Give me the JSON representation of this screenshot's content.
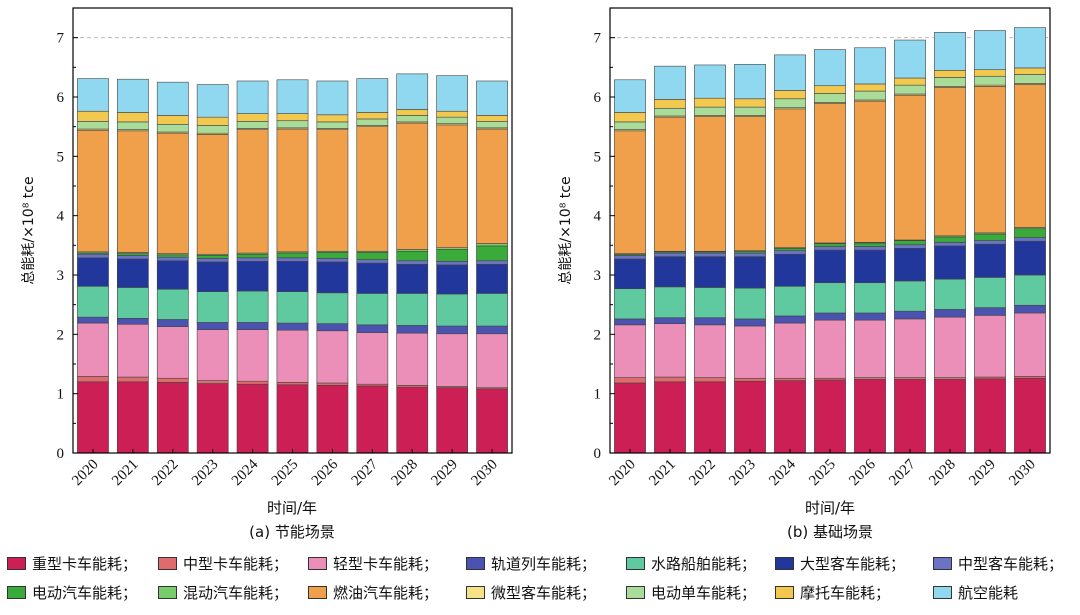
{
  "chart_data": [
    {
      "type": "bar",
      "stacked": true,
      "caption": "(a) 节能场景",
      "xlabel": "时间/年",
      "ylabel": "总能耗/×10⁸ tce",
      "ylim": [
        0,
        7.5
      ],
      "yticks": [
        0,
        1,
        2,
        3,
        4,
        5,
        6,
        7
      ],
      "gridline_at": 7,
      "categories": [
        "2020",
        "2021",
        "2022",
        "2023",
        "2024",
        "2025",
        "2026",
        "2027",
        "2028",
        "2029",
        "2030"
      ],
      "series": [
        {
          "name": "重型卡车能耗",
          "values": [
            1.2,
            1.2,
            1.19,
            1.17,
            1.16,
            1.15,
            1.14,
            1.13,
            1.11,
            1.1,
            1.08
          ]
        },
        {
          "name": "中型卡车能耗",
          "values": [
            0.09,
            0.08,
            0.07,
            0.05,
            0.05,
            0.04,
            0.04,
            0.03,
            0.03,
            0.02,
            0.02
          ]
        },
        {
          "name": "轻型卡车能耗",
          "values": [
            0.9,
            0.89,
            0.87,
            0.86,
            0.87,
            0.88,
            0.88,
            0.87,
            0.88,
            0.89,
            0.91
          ]
        },
        {
          "name": "轨道列车能耗",
          "values": [
            0.1,
            0.1,
            0.12,
            0.12,
            0.12,
            0.12,
            0.12,
            0.13,
            0.13,
            0.13,
            0.13
          ]
        },
        {
          "name": "水路船舶能耗",
          "values": [
            0.52,
            0.52,
            0.51,
            0.52,
            0.53,
            0.53,
            0.52,
            0.53,
            0.54,
            0.54,
            0.55
          ]
        },
        {
          "name": "大型客车能耗",
          "values": [
            0.48,
            0.48,
            0.48,
            0.5,
            0.5,
            0.51,
            0.52,
            0.51,
            0.49,
            0.49,
            0.49
          ]
        },
        {
          "name": "中型客车能耗",
          "values": [
            0.06,
            0.06,
            0.06,
            0.06,
            0.06,
            0.06,
            0.06,
            0.06,
            0.06,
            0.06,
            0.06
          ]
        },
        {
          "name": "电动汽车能耗",
          "values": [
            0.02,
            0.03,
            0.04,
            0.05,
            0.06,
            0.08,
            0.1,
            0.12,
            0.16,
            0.2,
            0.25
          ]
        },
        {
          "name": "混动汽车能耗",
          "values": [
            0.02,
            0.02,
            0.02,
            0.02,
            0.02,
            0.02,
            0.02,
            0.02,
            0.03,
            0.03,
            0.04
          ]
        },
        {
          "name": "燃油汽车能耗",
          "values": [
            2.05,
            2.05,
            2.03,
            2.02,
            2.08,
            2.07,
            2.05,
            2.1,
            2.13,
            2.07,
            1.93
          ]
        },
        {
          "name": "微型客车能耗",
          "values": [
            0.02,
            0.02,
            0.02,
            0.02,
            0.02,
            0.02,
            0.02,
            0.02,
            0.02,
            0.02,
            0.02
          ]
        },
        {
          "name": "电动单车能耗",
          "values": [
            0.13,
            0.13,
            0.13,
            0.13,
            0.12,
            0.12,
            0.11,
            0.11,
            0.11,
            0.11,
            0.11
          ]
        },
        {
          "name": "摩托车能耗",
          "values": [
            0.17,
            0.16,
            0.15,
            0.14,
            0.13,
            0.12,
            0.12,
            0.11,
            0.1,
            0.1,
            0.1
          ]
        },
        {
          "name": "航空能耗",
          "values": [
            0.55,
            0.56,
            0.56,
            0.55,
            0.55,
            0.57,
            0.57,
            0.57,
            0.6,
            0.6,
            0.58
          ]
        }
      ]
    },
    {
      "type": "bar",
      "stacked": true,
      "caption": "(b) 基础场景",
      "xlabel": "时间/年",
      "ylabel": "总能耗/×10⁸ tce",
      "ylim": [
        0,
        7.5
      ],
      "yticks": [
        0,
        1,
        2,
        3,
        4,
        5,
        6,
        7
      ],
      "gridline_at": 7,
      "categories": [
        "2020",
        "2021",
        "2022",
        "2023",
        "2024",
        "2025",
        "2026",
        "2027",
        "2028",
        "2029",
        "2030"
      ],
      "series": [
        {
          "name": "重型卡车能耗",
          "values": [
            1.18,
            1.2,
            1.2,
            1.21,
            1.22,
            1.23,
            1.24,
            1.24,
            1.24,
            1.25,
            1.26
          ]
        },
        {
          "name": "中型卡车能耗",
          "values": [
            0.09,
            0.08,
            0.07,
            0.05,
            0.04,
            0.03,
            0.03,
            0.03,
            0.03,
            0.03,
            0.03
          ]
        },
        {
          "name": "轻型卡车能耗",
          "values": [
            0.89,
            0.9,
            0.89,
            0.88,
            0.93,
            0.98,
            0.97,
            0.99,
            1.02,
            1.04,
            1.07
          ]
        },
        {
          "name": "轨道列车能耗",
          "values": [
            0.1,
            0.1,
            0.12,
            0.12,
            0.12,
            0.12,
            0.12,
            0.13,
            0.13,
            0.13,
            0.13
          ]
        },
        {
          "name": "水路船舶能耗",
          "values": [
            0.51,
            0.52,
            0.51,
            0.52,
            0.5,
            0.51,
            0.51,
            0.51,
            0.51,
            0.51,
            0.51
          ]
        },
        {
          "name": "大型客车能耗",
          "values": [
            0.5,
            0.51,
            0.52,
            0.53,
            0.54,
            0.55,
            0.55,
            0.55,
            0.56,
            0.56,
            0.57
          ]
        },
        {
          "name": "中型客车能耗",
          "values": [
            0.06,
            0.06,
            0.06,
            0.06,
            0.06,
            0.06,
            0.06,
            0.06,
            0.06,
            0.06,
            0.06
          ]
        },
        {
          "name": "电动汽车能耗",
          "values": [
            0.02,
            0.02,
            0.02,
            0.03,
            0.04,
            0.05,
            0.06,
            0.07,
            0.09,
            0.11,
            0.15
          ]
        },
        {
          "name": "混动汽车能耗",
          "values": [
            0.01,
            0.01,
            0.01,
            0.01,
            0.01,
            0.01,
            0.01,
            0.01,
            0.02,
            0.02,
            0.02
          ]
        },
        {
          "name": "燃油汽车能耗",
          "values": [
            2.07,
            2.26,
            2.27,
            2.26,
            2.34,
            2.35,
            2.38,
            2.44,
            2.5,
            2.47,
            2.41
          ]
        },
        {
          "name": "微型客车能耗",
          "values": [
            0.02,
            0.02,
            0.02,
            0.02,
            0.02,
            0.02,
            0.02,
            0.02,
            0.02,
            0.02,
            0.02
          ]
        },
        {
          "name": "电动单车能耗",
          "values": [
            0.13,
            0.13,
            0.14,
            0.14,
            0.15,
            0.15,
            0.15,
            0.15,
            0.15,
            0.15,
            0.15
          ]
        },
        {
          "name": "摩托车能耗",
          "values": [
            0.16,
            0.15,
            0.15,
            0.14,
            0.14,
            0.13,
            0.12,
            0.12,
            0.12,
            0.11,
            0.11
          ]
        },
        {
          "name": "航空能耗",
          "values": [
            0.55,
            0.56,
            0.56,
            0.58,
            0.6,
            0.61,
            0.61,
            0.64,
            0.64,
            0.66,
            0.68
          ]
        }
      ]
    }
  ],
  "legend": [
    {
      "label": "重型卡车能耗；",
      "color": "#cc1f55"
    },
    {
      "label": "中型卡车能耗；",
      "color": "#e06b6d"
    },
    {
      "label": "轻型卡车能耗；",
      "color": "#eb8fb8"
    },
    {
      "label": "轨道列车能耗；",
      "color": "#4b53b0"
    },
    {
      "label": "水路船舶能耗；",
      "color": "#5fc9a0"
    },
    {
      "label": "大型客车能耗；",
      "color": "#22379c"
    },
    {
      "label": "中型客车能耗；",
      "color": "#6a73c4"
    },
    {
      "label": "电动汽车能耗；",
      "color": "#3aab3a"
    },
    {
      "label": "混动汽车能耗；",
      "color": "#79cc6c"
    },
    {
      "label": "燃油汽车能耗；",
      "color": "#f0a04a"
    },
    {
      "label": "微型客车能耗；",
      "color": "#f6e189"
    },
    {
      "label": "电动单车能耗；",
      "color": "#a8dc98"
    },
    {
      "label": "摩托车能耗；",
      "color": "#f2c94e"
    },
    {
      "label": "航空能耗",
      "color": "#8fd8ef"
    }
  ]
}
